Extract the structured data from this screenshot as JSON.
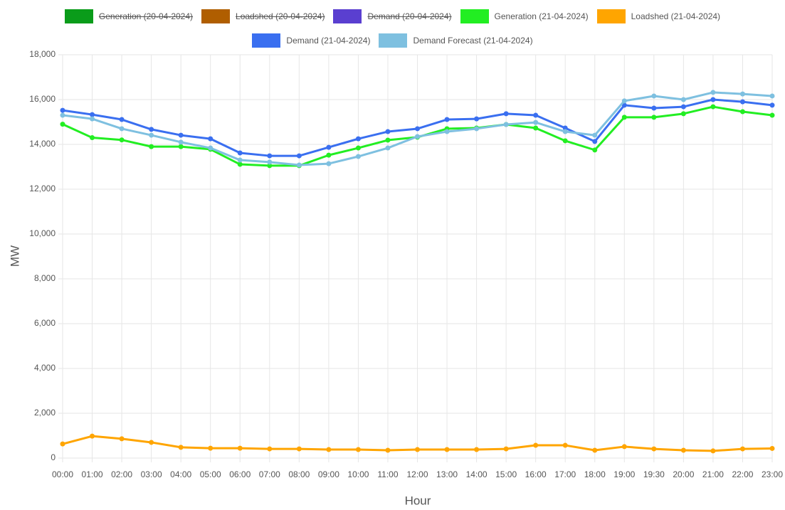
{
  "chart_data": {
    "type": "line",
    "x_label": "Hour",
    "y_label": "MW",
    "categories": [
      "00:00",
      "01:00",
      "02:00",
      "03:00",
      "04:00",
      "05:00",
      "06:00",
      "07:00",
      "08:00",
      "09:00",
      "10:00",
      "11:00",
      "12:00",
      "13:00",
      "14:00",
      "15:00",
      "16:00",
      "17:00",
      "18:00",
      "19:00",
      "19:30",
      "20:00",
      "21:00",
      "22:00",
      "23:00"
    ],
    "ylim": [
      0,
      18000
    ],
    "yticks": [
      0,
      {
        "value": 2000,
        "label": "2,000"
      },
      {
        "value": 4000,
        "label": "4,000"
      },
      {
        "value": 6000,
        "label": "6,000"
      },
      {
        "value": 8000,
        "label": "8,000"
      },
      {
        "value": 10000,
        "label": "10,000"
      },
      {
        "value": 12000,
        "label": "12,000"
      },
      {
        "value": 14000,
        "label": "14,000"
      },
      {
        "value": 16000,
        "label": "16,000"
      },
      {
        "value": 18000,
        "label": "18,000"
      }
    ],
    "grid": true,
    "series": [
      {
        "name": "Generation (20-04-2024)",
        "color": "#0a9c1a",
        "hidden": true,
        "values": [
          null,
          null,
          null,
          null,
          null,
          null,
          null,
          null,
          null,
          null,
          null,
          null,
          null,
          null,
          null,
          null,
          null,
          null,
          null,
          null,
          null,
          null,
          null,
          null,
          null
        ]
      },
      {
        "name": "Loadshed (20-04-2024)",
        "color": "#b05e00",
        "hidden": true,
        "values": [
          null,
          null,
          null,
          null,
          null,
          null,
          null,
          null,
          null,
          null,
          null,
          null,
          null,
          null,
          null,
          null,
          null,
          null,
          null,
          null,
          null,
          null,
          null,
          null,
          null
        ]
      },
      {
        "name": "Demand (20-04-2024)",
        "color": "#5a3fd0",
        "hidden": true,
        "values": [
          null,
          null,
          null,
          null,
          null,
          null,
          null,
          null,
          null,
          null,
          null,
          null,
          null,
          null,
          null,
          null,
          null,
          null,
          null,
          null,
          null,
          null,
          null,
          null,
          null
        ]
      },
      {
        "name": "Generation (21-04-2024)",
        "color": "#22ee22",
        "hidden": false,
        "values": [
          14900,
          14300,
          14200,
          13900,
          13900,
          13780,
          13110,
          13050,
          13050,
          13520,
          13840,
          14190,
          14320,
          14700,
          14730,
          14890,
          14730,
          14160,
          13750,
          15210,
          15210,
          15370,
          15680,
          15460,
          15300
        ]
      },
      {
        "name": "Loadshed (21-04-2024)",
        "color": "#ffa500",
        "hidden": false,
        "values": [
          630,
          980,
          860,
          700,
          480,
          440,
          440,
          410,
          410,
          380,
          380,
          350,
          380,
          380,
          380,
          410,
          570,
          570,
          350,
          510,
          410,
          350,
          320,
          410,
          430
        ]
      },
      {
        "name": "Demand (21-04-2024)",
        "color": "#3a6ff0",
        "hidden": false,
        "values": [
          15520,
          15330,
          15110,
          14670,
          14410,
          14250,
          13620,
          13490,
          13490,
          13870,
          14250,
          14570,
          14700,
          15110,
          15140,
          15370,
          15300,
          14730,
          14130,
          15750,
          15620,
          15680,
          16000,
          15900,
          15750
        ]
      },
      {
        "name": "Demand Forecast (21-04-2024)",
        "color": "#7ec0e0",
        "hidden": false,
        "values": [
          15300,
          15140,
          14700,
          14410,
          14100,
          13840,
          13300,
          13210,
          13080,
          13140,
          13460,
          13840,
          14350,
          14570,
          14700,
          14890,
          14980,
          14570,
          14410,
          15940,
          16160,
          16000,
          16320,
          16250,
          16160
        ]
      }
    ]
  }
}
